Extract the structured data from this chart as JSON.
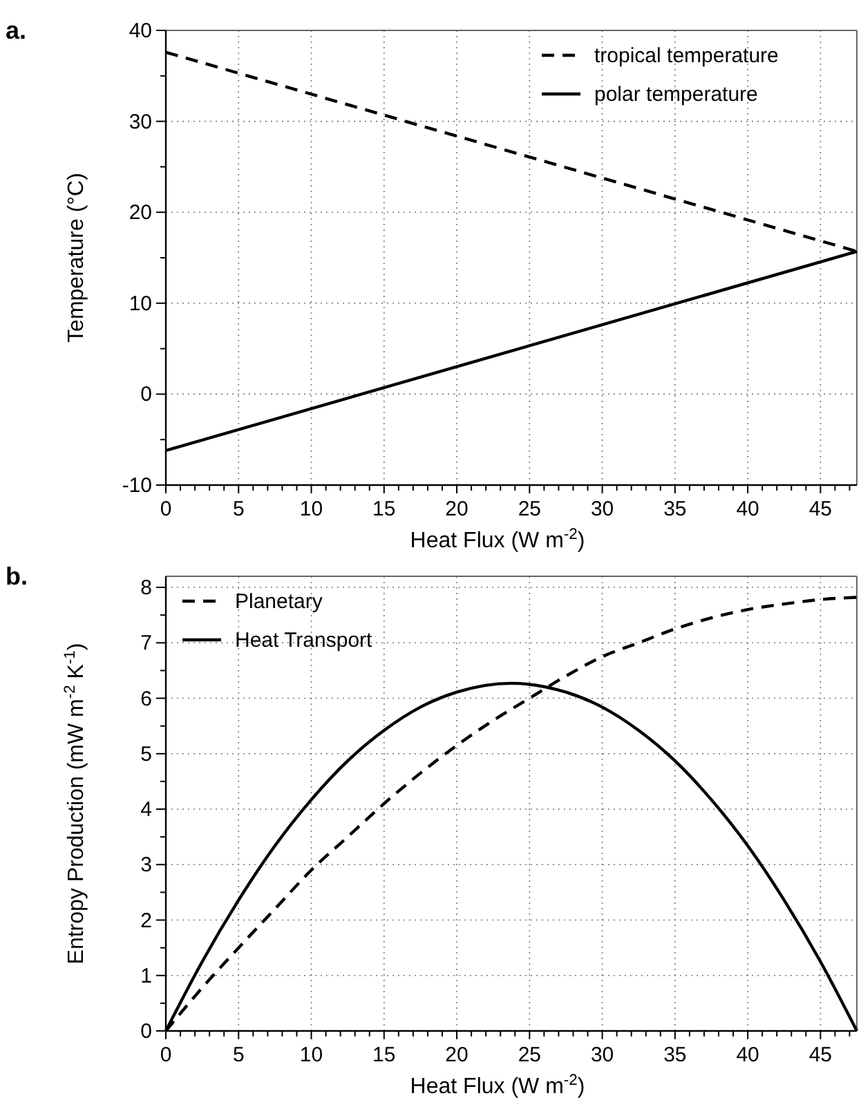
{
  "chart_data": [
    {
      "type": "line",
      "title": "a.",
      "xlabel": "Heat Flux (W m$^{-2}$)",
      "ylabel": "Temperature (°C)",
      "xlim": [
        0,
        47.5
      ],
      "ylim": [
        -10,
        40
      ],
      "xticks": [
        0,
        {
          "value": 1,
          "label": null
        },
        {
          "value": 2,
          "label": null
        },
        {
          "value": 3,
          "label": null
        },
        {
          "value": 4,
          "label": null
        },
        5,
        {
          "value": 6,
          "label": null
        },
        {
          "value": 7,
          "label": null
        },
        {
          "value": 8,
          "label": null
        },
        {
          "value": 9,
          "label": null
        },
        10,
        {
          "value": 11,
          "label": null
        },
        {
          "value": 12,
          "label": null
        },
        {
          "value": 13,
          "label": null
        },
        {
          "value": 14,
          "label": null
        },
        15,
        {
          "value": 16,
          "label": null
        },
        {
          "value": 17,
          "label": null
        },
        {
          "value": 18,
          "label": null
        },
        {
          "value": 19,
          "label": null
        },
        20,
        {
          "value": 21,
          "label": null
        },
        {
          "value": 22,
          "label": null
        },
        {
          "value": 23,
          "label": null
        },
        {
          "value": 24,
          "label": null
        },
        25,
        {
          "value": 26,
          "label": null
        },
        {
          "value": 27,
          "label": null
        },
        {
          "value": 28,
          "label": null
        },
        {
          "value": 29,
          "label": null
        },
        30,
        {
          "value": 31,
          "label": null
        },
        {
          "value": 32,
          "label": null
        },
        {
          "value": 33,
          "label": null
        },
        {
          "value": 34,
          "label": null
        },
        35,
        {
          "value": 36,
          "label": null
        },
        {
          "value": 37,
          "label": null
        },
        {
          "value": 38,
          "label": null
        },
        {
          "value": 39,
          "label": null
        },
        40,
        {
          "value": 41,
          "label": null
        },
        {
          "value": 42,
          "label": null
        },
        {
          "value": 43,
          "label": null
        },
        {
          "value": 44,
          "label": null
        },
        45,
        {
          "value": 46,
          "label": null
        },
        {
          "value": 47,
          "label": null
        }
      ],
      "yticks": [
        -10,
        {
          "value": -5,
          "label": null
        },
        0,
        {
          "value": 5,
          "label": null
        },
        10,
        {
          "value": 15,
          "label": null
        },
        20,
        {
          "value": 25,
          "label": null
        },
        30,
        {
          "value": 35,
          "label": null
        },
        40
      ],
      "grid": true,
      "legend": "top right",
      "series": [
        {
          "name": "tropical temperature",
          "color": "#000000",
          "line_style": "dashed",
          "x": [
            0,
            47.5
          ],
          "values": [
            37.6,
            15.7
          ]
        },
        {
          "name": "polar temperature",
          "color": "#000000",
          "line_style": "solid",
          "x": [
            0,
            47.5
          ],
          "values": [
            -6.2,
            15.7
          ]
        }
      ]
    },
    {
      "type": "line",
      "title": "b.",
      "xlabel": "Heat Flux (W m$^{-2}$)",
      "ylabel": "Entropy Production (mW m$^{-2}$ K$^{-1}$)",
      "xlim": [
        0,
        47.5
      ],
      "ylim": [
        0,
        8.2
      ],
      "xticks": [
        0,
        {
          "value": 1,
          "label": null
        },
        {
          "value": 2,
          "label": null
        },
        {
          "value": 3,
          "label": null
        },
        {
          "value": 4,
          "label": null
        },
        5,
        {
          "value": 6,
          "label": null
        },
        {
          "value": 7,
          "label": null
        },
        {
          "value": 8,
          "label": null
        },
        {
          "value": 9,
          "label": null
        },
        10,
        {
          "value": 11,
          "label": null
        },
        {
          "value": 12,
          "label": null
        },
        {
          "value": 13,
          "label": null
        },
        {
          "value": 14,
          "label": null
        },
        15,
        {
          "value": 16,
          "label": null
        },
        {
          "value": 17,
          "label": null
        },
        {
          "value": 18,
          "label": null
        },
        {
          "value": 19,
          "label": null
        },
        20,
        {
          "value": 21,
          "label": null
        },
        {
          "value": 22,
          "label": null
        },
        {
          "value": 23,
          "label": null
        },
        {
          "value": 24,
          "label": null
        },
        25,
        {
          "value": 26,
          "label": null
        },
        {
          "value": 27,
          "label": null
        },
        {
          "value": 28,
          "label": null
        },
        {
          "value": 29,
          "label": null
        },
        30,
        {
          "value": 31,
          "label": null
        },
        {
          "value": 32,
          "label": null
        },
        {
          "value": 33,
          "label": null
        },
        {
          "value": 34,
          "label": null
        },
        35,
        {
          "value": 36,
          "label": null
        },
        {
          "value": 37,
          "label": null
        },
        {
          "value": 38,
          "label": null
        },
        {
          "value": 39,
          "label": null
        },
        40,
        {
          "value": 41,
          "label": null
        },
        {
          "value": 42,
          "label": null
        },
        {
          "value": 43,
          "label": null
        },
        {
          "value": 44,
          "label": null
        },
        45,
        {
          "value": 46,
          "label": null
        },
        {
          "value": 47,
          "label": null
        }
      ],
      "yticks": [
        0,
        {
          "value": 0.5,
          "label": null
        },
        1,
        {
          "value": 1.5,
          "label": null
        },
        2,
        {
          "value": 2.5,
          "label": null
        },
        3,
        {
          "value": 3.5,
          "label": null
        },
        4,
        {
          "value": 4.5,
          "label": null
        },
        5,
        {
          "value": 5.5,
          "label": null
        },
        6,
        {
          "value": 6.5,
          "label": null
        },
        7,
        {
          "value": 7.5,
          "label": null
        },
        8
      ],
      "grid": true,
      "legend": "top left",
      "series": [
        {
          "name": "Planetary",
          "color": "#000000",
          "line_style": "dashed",
          "x": [
            0,
            2.5,
            5,
            7.5,
            10,
            12.5,
            15,
            17.5,
            20,
            22.5,
            25,
            27.5,
            30,
            32.5,
            35,
            37.5,
            40,
            42.5,
            45,
            47.5
          ],
          "values": [
            0,
            0.78,
            1.5,
            2.2,
            2.9,
            3.5,
            4.1,
            4.65,
            5.15,
            5.6,
            6.0,
            6.4,
            6.75,
            7.0,
            7.25,
            7.45,
            7.6,
            7.7,
            7.78,
            7.82
          ]
        },
        {
          "name": "Heat Transport",
          "color": "#000000",
          "line_style": "solid",
          "x": [
            0,
            2.5,
            5,
            7.5,
            10,
            12.5,
            15,
            17.5,
            20,
            23.75,
            27.5,
            30,
            32.5,
            35,
            37.5,
            40,
            42.5,
            45,
            47.5
          ],
          "values": [
            0,
            1.25,
            2.36,
            3.34,
            4.17,
            4.87,
            5.42,
            5.84,
            6.11,
            6.27,
            6.11,
            5.84,
            5.42,
            4.87,
            4.17,
            3.34,
            2.36,
            1.25,
            0
          ]
        }
      ]
    }
  ]
}
